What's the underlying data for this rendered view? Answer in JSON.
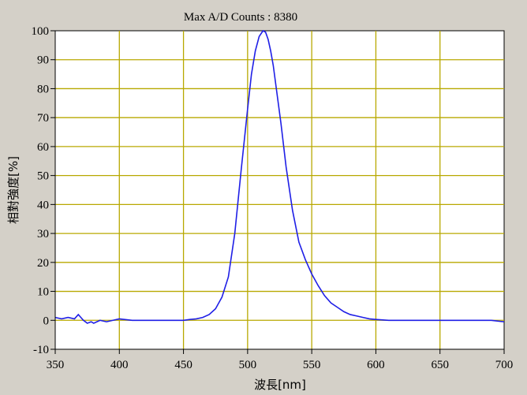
{
  "chart_data": {
    "type": "line",
    "title": "Max A/D Counts : 8380",
    "xlabel": "波長[nm]",
    "ylabel": "相對強度[%]",
    "xlim": [
      350,
      700
    ],
    "ylim": [
      -10,
      100
    ],
    "xticks": [
      350,
      400,
      450,
      500,
      550,
      600,
      650,
      700
    ],
    "yticks": [
      -10,
      0,
      10,
      20,
      30,
      40,
      50,
      60,
      70,
      80,
      90,
      100
    ],
    "grid": true,
    "colors": {
      "line": "#1f1fe6",
      "grid": "#b8a800",
      "plot_bg": "#ffffff",
      "frame_bg": "#d4d0c8"
    },
    "series": [
      {
        "x": [
          350,
          355,
          360,
          365,
          368,
          370,
          372,
          375,
          378,
          380,
          385,
          390,
          395,
          400,
          410,
          420,
          430,
          440,
          450,
          455,
          460,
          465,
          470,
          475,
          480,
          485,
          490,
          495,
          500,
          503,
          506,
          509,
          512,
          514,
          516,
          518,
          520,
          523,
          526,
          530,
          535,
          540,
          545,
          550,
          555,
          560,
          565,
          570,
          575,
          580,
          585,
          590,
          595,
          600,
          610,
          620,
          630,
          640,
          650,
          660,
          670,
          680,
          690,
          700
        ],
        "values": [
          1,
          0.5,
          1,
          0.5,
          2,
          1,
          0,
          -1,
          -0.5,
          -1,
          0,
          -0.5,
          0,
          0.5,
          0,
          0,
          0,
          0,
          0,
          0.3,
          0.5,
          1,
          2,
          4,
          8,
          15,
          30,
          52,
          73,
          85,
          93,
          98,
          100,
          99.5,
          97,
          93,
          88,
          78,
          68,
          53,
          38,
          27,
          21,
          16,
          12,
          8.5,
          6,
          4.5,
          3,
          2,
          1.5,
          1,
          0.5,
          0.3,
          0,
          0,
          0,
          0,
          0,
          0,
          0,
          0,
          0,
          -0.5
        ]
      }
    ]
  }
}
